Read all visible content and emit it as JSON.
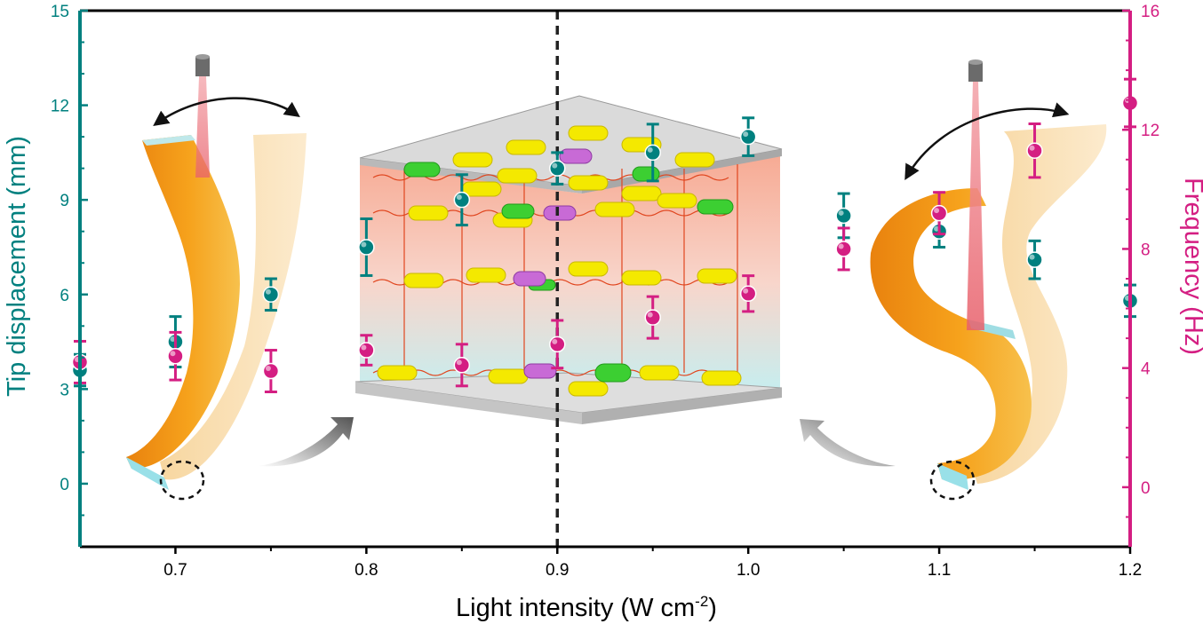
{
  "chart_data": {
    "type": "scatter",
    "xlabel": "Light intensity (W cm",
    "xlabel_sup": "-2",
    "xlabel_end": ")",
    "x_ticks": [
      "0.7",
      "0.8",
      "0.9",
      "1.0",
      "1.1",
      "1.2"
    ],
    "x_tick_values": [
      0.7,
      0.8,
      0.9,
      1.0,
      1.1,
      1.2
    ],
    "xlim": [
      0.65,
      1.2
    ],
    "left_axis": {
      "label": "Tip displacement (mm)",
      "color": "#00807f",
      "ylim": [
        -2,
        15
      ],
      "ticks": [
        "0",
        "3",
        "6",
        "9",
        "12",
        "15"
      ],
      "tick_values": [
        0,
        3,
        6,
        9,
        12,
        15
      ]
    },
    "right_axis": {
      "label": "Frequency (Hz)",
      "color": "#d41e82",
      "ylim": [
        -2,
        16
      ],
      "ticks": [
        "0",
        "4",
        "8",
        "12",
        "16"
      ],
      "tick_values": [
        0,
        4,
        8,
        12,
        16
      ]
    },
    "reference_line": {
      "x": 0.9,
      "style": "dashed",
      "color": "#222222"
    },
    "series": [
      {
        "axis": "left",
        "color": "#00807f",
        "points": [
          {
            "x": 0.65,
            "y": 3.6,
            "err": 0.5
          },
          {
            "x": 0.7,
            "y": 4.5,
            "err": 0.8
          },
          {
            "x": 0.75,
            "y": 6.0,
            "err": 0.5
          },
          {
            "x": 0.8,
            "y": 7.5,
            "err": 0.9
          },
          {
            "x": 0.85,
            "y": 9.0,
            "err": 0.8
          },
          {
            "x": 0.9,
            "y": 10.0,
            "err": 0.5
          },
          {
            "x": 0.95,
            "y": 10.5,
            "err": 0.9
          },
          {
            "x": 1.0,
            "y": 11.0,
            "err": 0.6
          },
          {
            "x": 1.05,
            "y": 8.5,
            "err": 0.7
          },
          {
            "x": 1.1,
            "y": 8.0,
            "err": 0.5
          },
          {
            "x": 1.15,
            "y": 7.1,
            "err": 0.6
          },
          {
            "x": 1.2,
            "y": 5.8,
            "err": 0.5
          }
        ]
      },
      {
        "axis": "right",
        "color": "#d41e82",
        "points": [
          {
            "x": 0.65,
            "y": 4.2,
            "err": 0.7
          },
          {
            "x": 0.7,
            "y": 4.4,
            "err": 0.8
          },
          {
            "x": 0.75,
            "y": 3.9,
            "err": 0.7
          },
          {
            "x": 0.8,
            "y": 4.6,
            "err": 0.5
          },
          {
            "x": 0.85,
            "y": 4.1,
            "err": 0.7
          },
          {
            "x": 0.9,
            "y": 4.8,
            "err": 0.8
          },
          {
            "x": 0.95,
            "y": 5.7,
            "err": 0.7
          },
          {
            "x": 1.0,
            "y": 6.5,
            "err": 0.6
          },
          {
            "x": 1.05,
            "y": 8.0,
            "err": 0.7
          },
          {
            "x": 1.1,
            "y": 9.2,
            "err": 0.7
          },
          {
            "x": 1.15,
            "y": 11.3,
            "err": 0.9
          },
          {
            "x": 1.2,
            "y": 12.9,
            "err": 0.8
          }
        ]
      }
    ],
    "insets": [
      {
        "name": "actuator-strip-low",
        "icon": "bending-strip-with-laser"
      },
      {
        "name": "liquid-crystal-network",
        "icon": "molecular-layer-diagram"
      },
      {
        "name": "actuator-strip-high",
        "icon": "s-curve-strip-with-laser"
      }
    ]
  }
}
